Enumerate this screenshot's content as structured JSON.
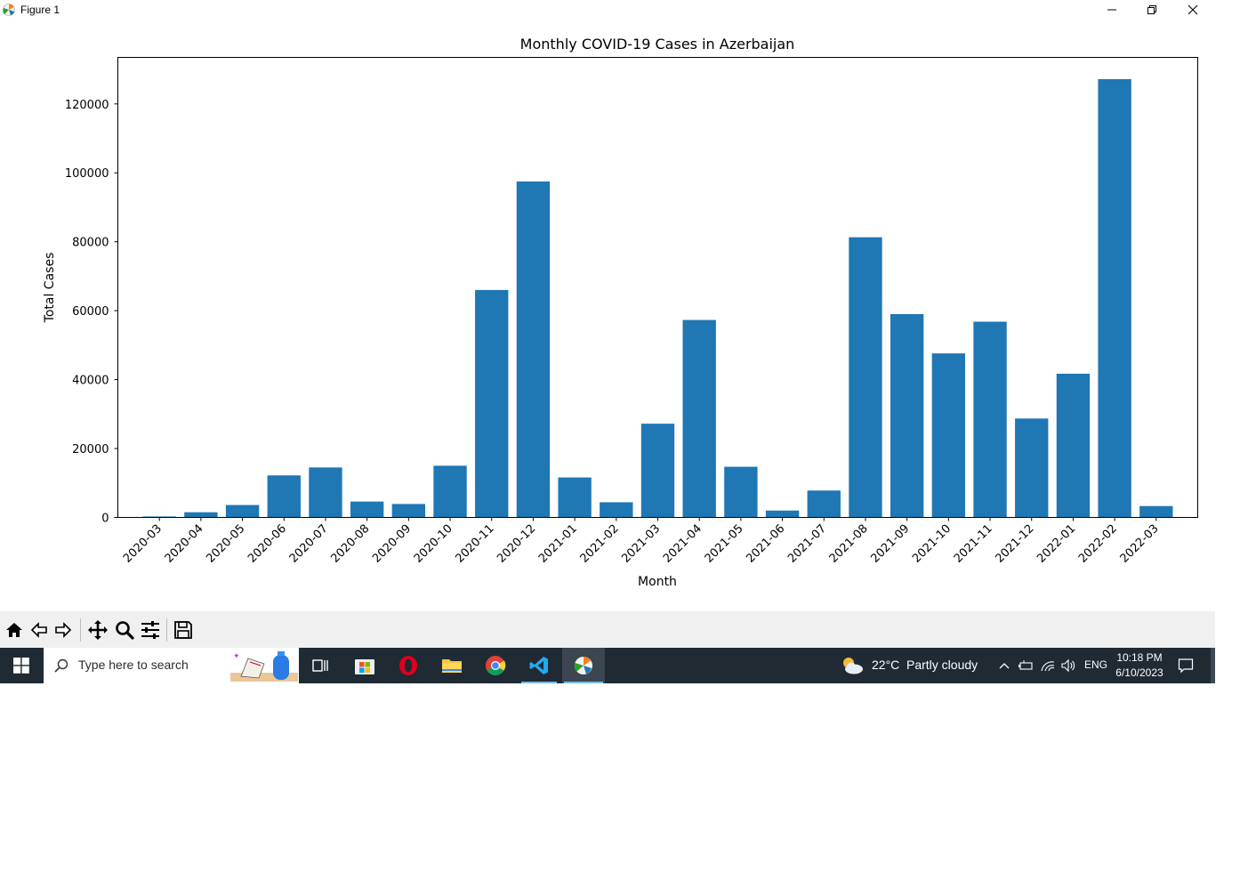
{
  "window": {
    "title": "Figure 1"
  },
  "chart_data": {
    "type": "bar",
    "title": "Monthly COVID-19 Cases in Azerbaijan",
    "xlabel": "Month",
    "ylabel": "Total Cases",
    "ylim": [
      0,
      133500
    ],
    "yticks": [
      0,
      20000,
      40000,
      60000,
      80000,
      100000,
      120000
    ],
    "categories": [
      "2020-03",
      "2020-04",
      "2020-05",
      "2020-06",
      "2020-07",
      "2020-08",
      "2020-09",
      "2020-10",
      "2020-11",
      "2020-12",
      "2021-01",
      "2021-02",
      "2021-03",
      "2021-04",
      "2021-05",
      "2021-06",
      "2021-07",
      "2021-08",
      "2021-09",
      "2021-10",
      "2021-11",
      "2021-12",
      "2022-01",
      "2022-02",
      "2022-03"
    ],
    "values": [
      280,
      1500,
      3600,
      12200,
      14500,
      4600,
      3900,
      15000,
      66000,
      97500,
      11600,
      4400,
      27200,
      57300,
      14700,
      2000,
      7800,
      81300,
      59000,
      47600,
      56800,
      28700,
      41700,
      127200,
      3300
    ],
    "color": "#1f77b4",
    "grid": false,
    "legend": "none"
  },
  "toolbar": {
    "buttons": [
      "home-icon",
      "back-icon",
      "forward-icon",
      "pan-icon",
      "zoom-icon",
      "configure-icon",
      "save-icon"
    ]
  },
  "taskbar": {
    "search_placeholder": "Type here to search",
    "weather_temp": "22°C",
    "weather_text": "Partly cloudy",
    "language": "ENG",
    "time": "10:18 PM",
    "date": "6/10/2023",
    "accent": "#76b9ed",
    "background": "#1f2a33"
  }
}
